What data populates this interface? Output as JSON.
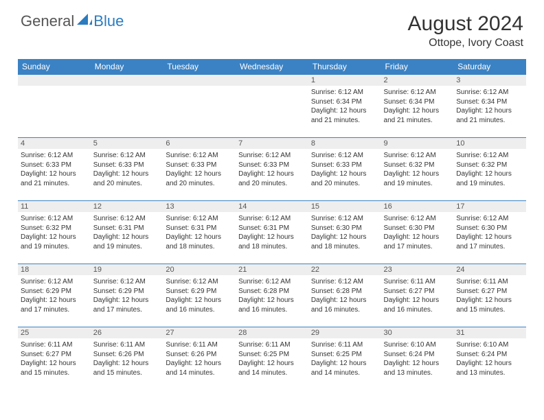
{
  "logo": {
    "general": "General",
    "blue": "Blue"
  },
  "title": "August 2024",
  "location": "Ottope, Ivory Coast",
  "colors": {
    "header_bg": "#3b82c4",
    "header_text": "#ffffff",
    "daynum_bg": "#eeeeee",
    "border": "#3b82c4",
    "logo_blue": "#2b7bbf",
    "logo_gray": "#555555"
  },
  "weekdays": [
    "Sunday",
    "Monday",
    "Tuesday",
    "Wednesday",
    "Thursday",
    "Friday",
    "Saturday"
  ],
  "weeks": [
    [
      {
        "n": "",
        "sr": "",
        "ss": "",
        "dl": ""
      },
      {
        "n": "",
        "sr": "",
        "ss": "",
        "dl": ""
      },
      {
        "n": "",
        "sr": "",
        "ss": "",
        "dl": ""
      },
      {
        "n": "",
        "sr": "",
        "ss": "",
        "dl": ""
      },
      {
        "n": "1",
        "sr": "6:12 AM",
        "ss": "6:34 PM",
        "dl": "12 hours and 21 minutes."
      },
      {
        "n": "2",
        "sr": "6:12 AM",
        "ss": "6:34 PM",
        "dl": "12 hours and 21 minutes."
      },
      {
        "n": "3",
        "sr": "6:12 AM",
        "ss": "6:34 PM",
        "dl": "12 hours and 21 minutes."
      }
    ],
    [
      {
        "n": "4",
        "sr": "6:12 AM",
        "ss": "6:33 PM",
        "dl": "12 hours and 21 minutes."
      },
      {
        "n": "5",
        "sr": "6:12 AM",
        "ss": "6:33 PM",
        "dl": "12 hours and 20 minutes."
      },
      {
        "n": "6",
        "sr": "6:12 AM",
        "ss": "6:33 PM",
        "dl": "12 hours and 20 minutes."
      },
      {
        "n": "7",
        "sr": "6:12 AM",
        "ss": "6:33 PM",
        "dl": "12 hours and 20 minutes."
      },
      {
        "n": "8",
        "sr": "6:12 AM",
        "ss": "6:33 PM",
        "dl": "12 hours and 20 minutes."
      },
      {
        "n": "9",
        "sr": "6:12 AM",
        "ss": "6:32 PM",
        "dl": "12 hours and 19 minutes."
      },
      {
        "n": "10",
        "sr": "6:12 AM",
        "ss": "6:32 PM",
        "dl": "12 hours and 19 minutes."
      }
    ],
    [
      {
        "n": "11",
        "sr": "6:12 AM",
        "ss": "6:32 PM",
        "dl": "12 hours and 19 minutes."
      },
      {
        "n": "12",
        "sr": "6:12 AM",
        "ss": "6:31 PM",
        "dl": "12 hours and 19 minutes."
      },
      {
        "n": "13",
        "sr": "6:12 AM",
        "ss": "6:31 PM",
        "dl": "12 hours and 18 minutes."
      },
      {
        "n": "14",
        "sr": "6:12 AM",
        "ss": "6:31 PM",
        "dl": "12 hours and 18 minutes."
      },
      {
        "n": "15",
        "sr": "6:12 AM",
        "ss": "6:30 PM",
        "dl": "12 hours and 18 minutes."
      },
      {
        "n": "16",
        "sr": "6:12 AM",
        "ss": "6:30 PM",
        "dl": "12 hours and 17 minutes."
      },
      {
        "n": "17",
        "sr": "6:12 AM",
        "ss": "6:30 PM",
        "dl": "12 hours and 17 minutes."
      }
    ],
    [
      {
        "n": "18",
        "sr": "6:12 AM",
        "ss": "6:29 PM",
        "dl": "12 hours and 17 minutes."
      },
      {
        "n": "19",
        "sr": "6:12 AM",
        "ss": "6:29 PM",
        "dl": "12 hours and 17 minutes."
      },
      {
        "n": "20",
        "sr": "6:12 AM",
        "ss": "6:29 PM",
        "dl": "12 hours and 16 minutes."
      },
      {
        "n": "21",
        "sr": "6:12 AM",
        "ss": "6:28 PM",
        "dl": "12 hours and 16 minutes."
      },
      {
        "n": "22",
        "sr": "6:12 AM",
        "ss": "6:28 PM",
        "dl": "12 hours and 16 minutes."
      },
      {
        "n": "23",
        "sr": "6:11 AM",
        "ss": "6:27 PM",
        "dl": "12 hours and 16 minutes."
      },
      {
        "n": "24",
        "sr": "6:11 AM",
        "ss": "6:27 PM",
        "dl": "12 hours and 15 minutes."
      }
    ],
    [
      {
        "n": "25",
        "sr": "6:11 AM",
        "ss": "6:27 PM",
        "dl": "12 hours and 15 minutes."
      },
      {
        "n": "26",
        "sr": "6:11 AM",
        "ss": "6:26 PM",
        "dl": "12 hours and 15 minutes."
      },
      {
        "n": "27",
        "sr": "6:11 AM",
        "ss": "6:26 PM",
        "dl": "12 hours and 14 minutes."
      },
      {
        "n": "28",
        "sr": "6:11 AM",
        "ss": "6:25 PM",
        "dl": "12 hours and 14 minutes."
      },
      {
        "n": "29",
        "sr": "6:11 AM",
        "ss": "6:25 PM",
        "dl": "12 hours and 14 minutes."
      },
      {
        "n": "30",
        "sr": "6:10 AM",
        "ss": "6:24 PM",
        "dl": "12 hours and 13 minutes."
      },
      {
        "n": "31",
        "sr": "6:10 AM",
        "ss": "6:24 PM",
        "dl": "12 hours and 13 minutes."
      }
    ]
  ],
  "labels": {
    "sunrise": "Sunrise:",
    "sunset": "Sunset:",
    "daylight": "Daylight:"
  }
}
